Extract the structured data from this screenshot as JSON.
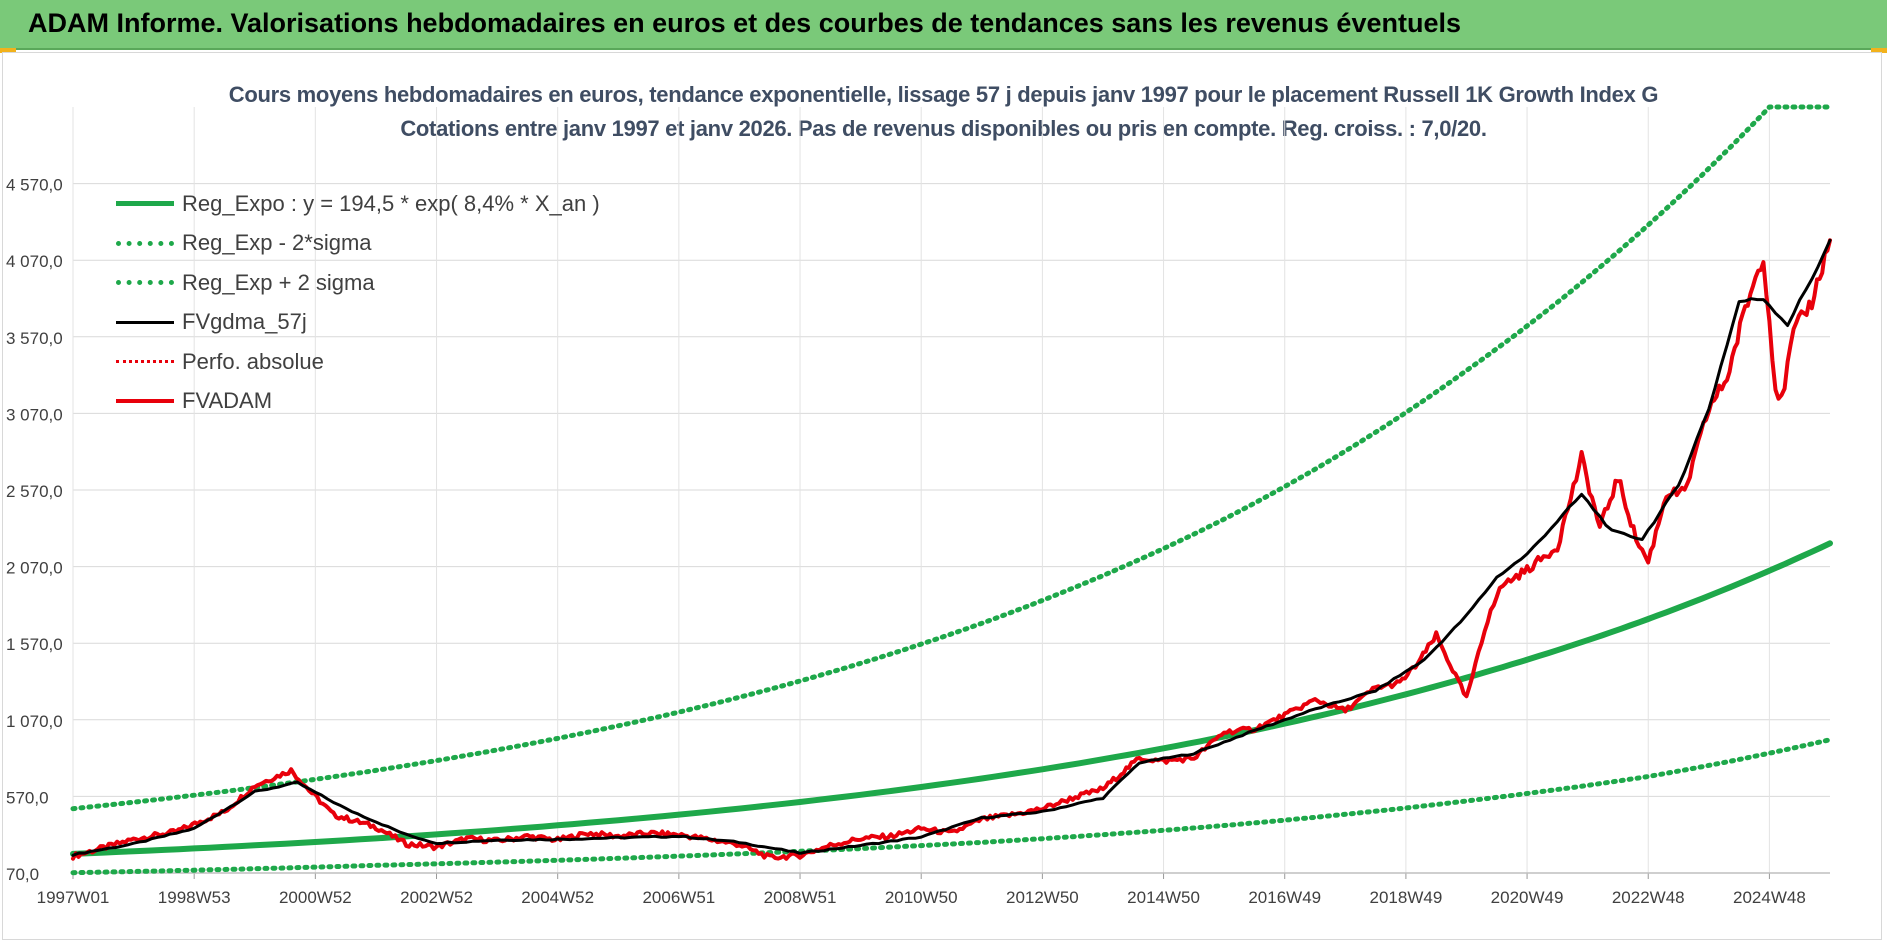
{
  "banner": {
    "title": "ADAM Informe. Valorisations hebdomadaires en euros et des courbes de tendances sans les revenus éventuels"
  },
  "colors": {
    "banner_bg": "#7ac979",
    "accent_corner": "#f2b21c",
    "title_text": "#3f4d63",
    "reg_expo": "#1ea84a",
    "reg_sigma": "#1ea84a",
    "fvgdma": "#000000",
    "perfo": "#e8000b",
    "fvadam": "#e8000b"
  },
  "chart_data": {
    "type": "line",
    "title": "Cours moyens hebdomadaires en euros, tendance exponentielle, lissage 57 j depuis janv 1997 pour le placement Russell 1K Growth Index G",
    "subtitle": "Cotations entre janv 1997 et janv 2026. Pas de revenus disponibles ou pris en compte. Reg. croiss. : 7,0/20.",
    "xlabel": "",
    "ylabel": "",
    "x_start": "1997W01",
    "x_end": "2026W02",
    "x_tick_labels": [
      "1997W01",
      "1998W53",
      "2000W52",
      "2002W52",
      "2004W52",
      "2006W51",
      "2008W51",
      "2010W50",
      "2012W50",
      "2014W50",
      "2016W49",
      "2018W49",
      "2020W49",
      "2022W48",
      "2024W48"
    ],
    "x_tick_years": [
      1997.0,
      1999.0,
      2001.0,
      2003.0,
      2005.0,
      2007.0,
      2009.0,
      2011.0,
      2013.0,
      2015.0,
      2017.0,
      2019.0,
      2021.0,
      2023.0,
      2025.0
    ],
    "y_tick_labels": [
      "70,0",
      "570,0",
      "1 070,0",
      "1 570,0",
      "2 070,0",
      "2 570,0",
      "3 070,0",
      "3 570,0",
      "4 070,0",
      "4 570,0"
    ],
    "ylim": [
      70,
      5070
    ],
    "grid": true,
    "legend_position": "top-left",
    "series": [
      {
        "name": "Reg_Expo : y = 194,5 * exp( 8,4% *  X_an )",
        "style": "solid-thick",
        "x": [
          1997,
          2002,
          2007,
          2012,
          2016,
          2020,
          2023,
          2026
        ],
        "y": [
          195,
          296,
          451,
          687,
          961,
          1345,
          1728,
          2222
        ]
      },
      {
        "name": "Reg_Exp - 2*sigma",
        "style": "dotted",
        "x": [
          1997,
          2002,
          2007,
          2012,
          2016,
          2020,
          2023,
          2026
        ],
        "y": [
          72,
          120,
          180,
          270,
          380,
          540,
          700,
          940
        ]
      },
      {
        "name": "Reg_Exp + 2 sigma",
        "style": "dotted",
        "x": [
          1997,
          2002,
          2007,
          2012,
          2016,
          2020,
          2023,
          2025.0,
          2026
        ],
        "y": [
          490,
          740,
          1120,
          1700,
          2380,
          3350,
          4300,
          5070,
          5070
        ]
      },
      {
        "name": "FVgdma_57j",
        "style": "solid",
        "x": [
          1997,
          1998,
          1999,
          2000,
          2000.7,
          2001.5,
          2002.5,
          2003,
          2004,
          2005,
          2006,
          2007,
          2008,
          2009,
          2010,
          2011,
          2012,
          2013,
          2014,
          2014.6,
          2015.5,
          2016.5,
          2017.5,
          2018.5,
          2019.3,
          2020,
          2020.5,
          2021,
          2021.9,
          2022.4,
          2022.9,
          2023.5,
          2024,
          2024.5,
          2024.9,
          2025.3,
          2025.7,
          2026
        ],
        "y": [
          190,
          260,
          360,
          600,
          660,
          490,
          320,
          265,
          285,
          290,
          300,
          310,
          270,
          200,
          250,
          305,
          430,
          470,
          560,
          790,
          850,
          1000,
          1140,
          1260,
          1460,
          1750,
          2000,
          2150,
          2540,
          2300,
          2250,
          2600,
          3100,
          3800,
          3820,
          3650,
          3950,
          4200
        ]
      },
      {
        "name": "Perfo. absolue",
        "style": "dotted",
        "x": [],
        "y": []
      },
      {
        "name": "FVADAM",
        "style": "solid-thick",
        "x": [
          1997,
          1998,
          1998.7,
          1999.5,
          2000,
          2000.6,
          2000.9,
          2001.3,
          2002,
          2002.5,
          2003,
          2003.5,
          2004,
          2004.5,
          2005,
          2005.5,
          2006,
          2006.5,
          2007,
          2007.5,
          2008,
          2008.5,
          2009,
          2009.5,
          2010,
          2010.5,
          2011,
          2011.5,
          2012,
          2012.5,
          2013,
          2013.5,
          2014,
          2014.3,
          2014.6,
          2015,
          2015.5,
          2016,
          2016.5,
          2017,
          2017.5,
          2018,
          2018.5,
          2018.9,
          2019.2,
          2019.5,
          2020,
          2020.2,
          2020.4,
          2020.6,
          2021,
          2021.5,
          2021.9,
          2022.2,
          2022.5,
          2022.8,
          2023,
          2023.3,
          2023.6,
          2024,
          2024.3,
          2024.6,
          2024.9,
          2025.1,
          2025.2,
          2025.4,
          2025.7,
          2026
        ],
        "y": [
          180,
          290,
          340,
          470,
          640,
          740,
          610,
          450,
          370,
          260,
          240,
          295,
          280,
          310,
          285,
          330,
          310,
          330,
          320,
          290,
          255,
          170,
          185,
          250,
          295,
          310,
          360,
          330,
          420,
          450,
          490,
          560,
          620,
          720,
          820,
          800,
          820,
          990,
          1010,
          1100,
          1200,
          1130,
          1280,
          1310,
          1440,
          1620,
          1210,
          1500,
          1800,
          1950,
          2050,
          2200,
          2780,
          2320,
          2650,
          2250,
          2100,
          2550,
          2550,
          3100,
          3300,
          3750,
          4110,
          3240,
          3150,
          3600,
          3800,
          4200
        ]
      }
    ]
  }
}
